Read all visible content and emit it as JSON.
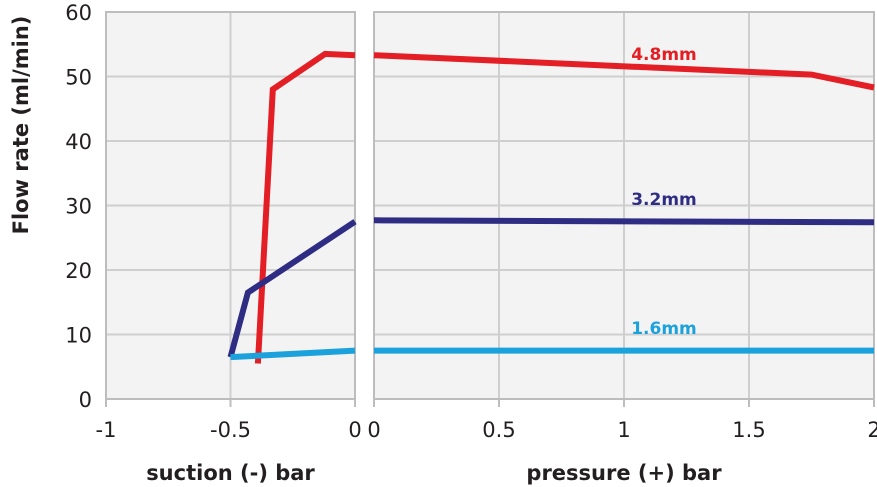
{
  "chart_data": {
    "type": "line",
    "ylabel": "Flow rate (ml/min)",
    "ylim": [
      0,
      60
    ],
    "yticks": [
      "0",
      "10",
      "20",
      "30",
      "40",
      "50",
      "60"
    ],
    "grid": true,
    "panels": [
      {
        "id": "suction",
        "xlabel": "suction (-) bar",
        "xlim": [
          -1,
          0
        ],
        "xticks": [
          {
            "value": -1,
            "label": "-1"
          },
          {
            "value": -0.5,
            "label": "-0.5"
          },
          {
            "value": 0,
            "label": "0"
          }
        ],
        "series": [
          {
            "name": "4.8mm",
            "color": "#e31e24",
            "points": [
              [
                -0.39,
                5.5
              ],
              [
                -0.33,
                48
              ],
              [
                -0.12,
                53.5
              ],
              [
                0,
                53.3
              ]
            ]
          },
          {
            "name": "3.2mm",
            "color": "#2e2d83",
            "points": [
              [
                -0.5,
                6.5
              ],
              [
                -0.43,
                16.5
              ],
              [
                0,
                27.5
              ]
            ]
          },
          {
            "name": "1.6mm",
            "color": "#1ba1dc",
            "points": [
              [
                -0.5,
                6.5
              ],
              [
                0,
                7.5
              ]
            ]
          }
        ]
      },
      {
        "id": "pressure",
        "xlabel": "pressure (+) bar",
        "xlim": [
          0,
          2
        ],
        "xticks": [
          {
            "value": 0,
            "label": "0"
          },
          {
            "value": 0.5,
            "label": "0.5"
          },
          {
            "value": 1,
            "label": "1"
          },
          {
            "value": 1.5,
            "label": "1.5"
          },
          {
            "value": 2,
            "label": "2"
          }
        ],
        "series": [
          {
            "name": "4.8mm",
            "color": "#e31e24",
            "label_at": [
              1.16,
              53.5
            ],
            "points": [
              [
                0,
                53.3
              ],
              [
                1.75,
                50.3
              ],
              [
                2,
                48.3
              ]
            ]
          },
          {
            "name": "3.2mm",
            "color": "#2e2d83",
            "label_at": [
              1.16,
              31
            ],
            "points": [
              [
                0,
                27.7
              ],
              [
                2,
                27.4
              ]
            ]
          },
          {
            "name": "1.6mm",
            "color": "#1ba1dc",
            "label_at": [
              1.16,
              11
            ],
            "points": [
              [
                0,
                7.5
              ],
              [
                2,
                7.5
              ]
            ]
          }
        ]
      }
    ]
  }
}
